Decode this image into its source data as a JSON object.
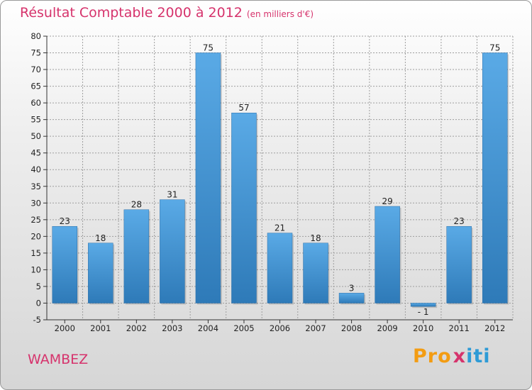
{
  "title": "Résultat Comptable 2000 à 2012",
  "subtitle": "(en milliers d'€)",
  "commune": "WAMBEZ",
  "logo": {
    "p1": "Pro",
    "x": "x",
    "p2": "iti"
  },
  "colors": {
    "title": "#d6336c",
    "bar_light": "#5aaae6",
    "bar_dark": "#2e7ab8",
    "grid": "#9e9e9e",
    "axis": "#333333"
  },
  "chart_data": {
    "type": "bar",
    "title": "Résultat Comptable 2000 à 2012",
    "subtitle": "(en milliers d'€)",
    "xlabel": "",
    "ylabel": "",
    "categories": [
      "2000",
      "2001",
      "2002",
      "2003",
      "2004",
      "2005",
      "2006",
      "2007",
      "2008",
      "2009",
      "2010",
      "2011",
      "2012"
    ],
    "values": [
      23,
      18,
      28,
      31,
      75,
      57,
      21,
      18,
      3,
      29,
      -1,
      23,
      75
    ],
    "ylim": [
      -5,
      80
    ],
    "yticks": [
      -5,
      0,
      5,
      10,
      15,
      20,
      25,
      30,
      35,
      40,
      45,
      50,
      55,
      60,
      65,
      70,
      75,
      80
    ],
    "grid": true
  }
}
